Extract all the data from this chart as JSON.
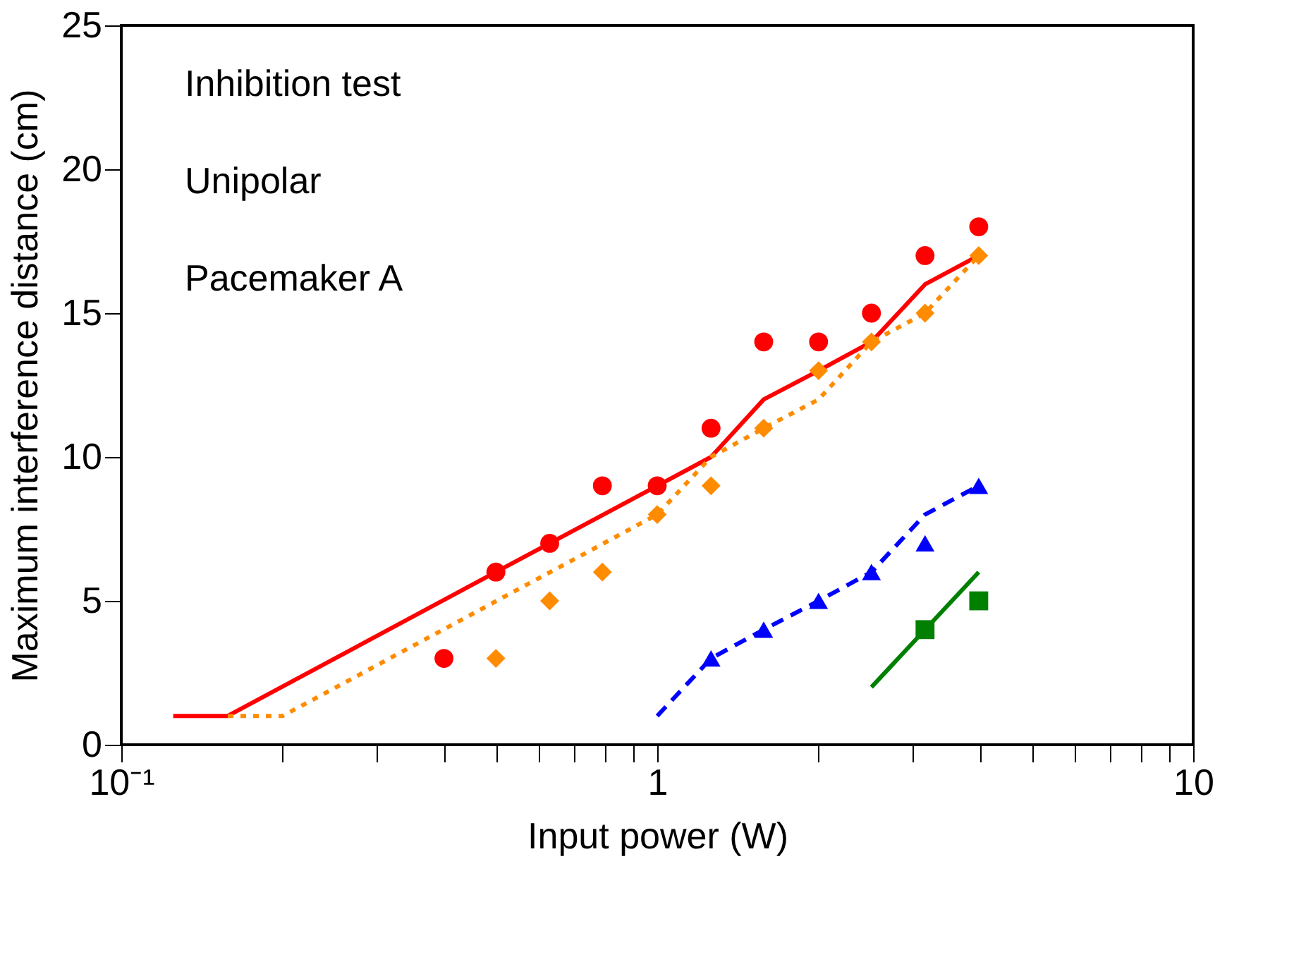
{
  "chart_data": {
    "type": "scatter",
    "xlabel": "Input power (W)",
    "ylabel": "Maximum interference distance (cm)",
    "annotations": [
      "Inhibition test",
      "Unipolar",
      "Pacemaker A"
    ],
    "log": "x",
    "grid": false,
    "xlim": [
      0.1,
      10
    ],
    "ylim": [
      0,
      25
    ],
    "xticks": [
      {
        "value": 0.1,
        "label": "10⁻¹"
      },
      {
        "value": 0.2,
        "label": null
      },
      {
        "value": 0.3,
        "label": null
      },
      {
        "value": 0.4,
        "label": null
      },
      {
        "value": 0.5,
        "label": null
      },
      {
        "value": 0.6,
        "label": null
      },
      {
        "value": 0.7,
        "label": null
      },
      {
        "value": 0.8,
        "label": null
      },
      {
        "value": 0.9,
        "label": null
      },
      1,
      {
        "value": 2,
        "label": null
      },
      {
        "value": 3,
        "label": null
      },
      {
        "value": 4,
        "label": null
      },
      {
        "value": 5,
        "label": null
      },
      {
        "value": 6,
        "label": null
      },
      {
        "value": 7,
        "label": null
      },
      {
        "value": 8,
        "label": null
      },
      {
        "value": 9,
        "label": null
      },
      10
    ],
    "yticks": [
      0,
      5,
      10,
      15,
      20,
      25
    ],
    "series": [
      {
        "type": "line",
        "color": "#ff0000",
        "line_style": "solid",
        "marker": "none",
        "x": [
          0.125,
          0.158,
          0.5,
          0.63,
          1,
          1.26,
          1.58,
          2,
          2.51,
          3.16,
          3.98
        ],
        "values": [
          1,
          1,
          6,
          7,
          9,
          10,
          12,
          13,
          14,
          16,
          17
        ]
      },
      {
        "type": "line",
        "color": "#ff8c00",
        "line_style": "dotted",
        "marker": "none",
        "x": [
          0.158,
          0.2,
          1,
          1.26,
          1.58,
          2,
          2.51,
          3.16,
          3.98
        ],
        "values": [
          1,
          1,
          8,
          10,
          11,
          12,
          14,
          15,
          17
        ]
      },
      {
        "type": "line",
        "color": "#0000ff",
        "line_style": "dashed",
        "marker": "none",
        "x": [
          1,
          1.26,
          1.58,
          2,
          2.51,
          3.16,
          3.98
        ],
        "values": [
          1,
          3,
          4,
          5,
          6,
          8,
          9
        ]
      },
      {
        "type": "line",
        "color": "#008000",
        "line_style": "solid",
        "marker": "none",
        "x": [
          2.51,
          3.98
        ],
        "values": [
          2,
          6
        ]
      },
      {
        "color": "#ff0000",
        "marker": "circle",
        "x": [
          0.4,
          0.5,
          0.63,
          0.79,
          1,
          1.26,
          1.58,
          2,
          2.51,
          3.16,
          3.98
        ],
        "values": [
          3,
          6,
          7,
          9,
          9,
          11,
          14,
          14,
          15,
          17,
          18
        ]
      },
      {
        "color": "#ff8c00",
        "marker": "diamond",
        "x": [
          0.5,
          0.63,
          0.79,
          1,
          1.26,
          1.58,
          2,
          2.51,
          3.16,
          3.98
        ],
        "values": [
          3,
          5,
          6,
          8,
          9,
          11,
          13,
          14,
          15,
          17
        ]
      },
      {
        "color": "#0000ff",
        "marker": "triangle",
        "x": [
          1.26,
          1.58,
          2,
          2.51,
          3.16,
          3.98
        ],
        "values": [
          3,
          4,
          5,
          6,
          7,
          9
        ]
      },
      {
        "color": "#008000",
        "marker": "square",
        "x": [
          3.16,
          3.98
        ],
        "values": [
          4,
          5
        ]
      }
    ]
  }
}
